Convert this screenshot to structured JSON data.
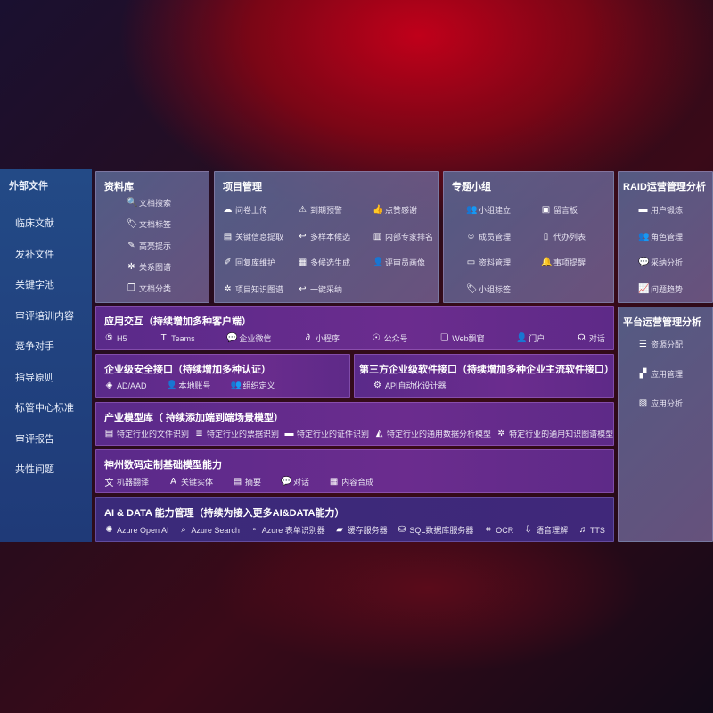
{
  "sidebar": {
    "title": "外部文件",
    "items": [
      "临床文献",
      "发补文件",
      "关键字池",
      "审评培训内容",
      "竞争对手",
      "指导原则",
      "标管中心标准",
      "审评报告",
      "共性问题"
    ]
  },
  "library": {
    "title": "资料库",
    "items": [
      {
        "icon": "document-search-icon",
        "label": "文档搜索"
      },
      {
        "icon": "tag-icon",
        "label": "文档标签"
      },
      {
        "icon": "pen-icon",
        "label": "高亮提示"
      },
      {
        "icon": "graph-icon",
        "label": "关系图谱"
      },
      {
        "icon": "document-classify-icon",
        "label": "文档分类"
      }
    ]
  },
  "project": {
    "title": "项目管理",
    "items": [
      {
        "icon": "cloud-upload-icon",
        "label": "问卷上传"
      },
      {
        "icon": "alarm-icon",
        "label": "到期预警"
      },
      {
        "icon": "thumbs-up-icon",
        "label": "点赞感谢"
      },
      {
        "icon": "extract-icon",
        "label": "关键信息提取"
      },
      {
        "icon": "reply-icon",
        "label": "多样本候选"
      },
      {
        "icon": "ranking-icon",
        "label": "内部专家排名"
      },
      {
        "icon": "edit-icon",
        "label": "回复库维护"
      },
      {
        "icon": "puzzle-icon",
        "label": "多候选生成"
      },
      {
        "icon": "user-icon",
        "label": "评审员画像"
      },
      {
        "icon": "graph-icon",
        "label": "项目知识图谱"
      },
      {
        "icon": "reply-icon",
        "label": "一键采纳"
      }
    ]
  },
  "group": {
    "title": "专题小组",
    "items": [
      {
        "icon": "group-icon",
        "label": "小组建立"
      },
      {
        "icon": "bbs-icon",
        "label": "留言板"
      },
      {
        "icon": "add-user-icon",
        "label": "成员管理"
      },
      {
        "icon": "clipboard-icon",
        "label": "代办列表"
      },
      {
        "icon": "folder-icon",
        "label": "资料管理"
      },
      {
        "icon": "bell-icon",
        "label": "事项提醒"
      },
      {
        "icon": "tag-icon",
        "label": "小组标签"
      }
    ]
  },
  "raid": {
    "title": "RAID运营管理分析",
    "items": [
      {
        "icon": "id-card-icon",
        "label": "用户锻炼"
      },
      {
        "icon": "users-icon",
        "label": "角色管理"
      },
      {
        "icon": "qa-icon",
        "label": "采纳分析"
      },
      {
        "icon": "trend-icon",
        "label": "问题趋势"
      }
    ]
  },
  "platform": {
    "title": "平台运营管理分析",
    "items": [
      {
        "icon": "list-icon",
        "label": "资源分配"
      },
      {
        "icon": "apps-icon",
        "label": "应用管理"
      },
      {
        "icon": "chart-icon",
        "label": "应用分析"
      }
    ]
  },
  "interaction": {
    "title": "应用交互（持续增加多种客户端）",
    "items": [
      {
        "icon": "html5-icon",
        "label": "H5"
      },
      {
        "icon": "teams-icon",
        "label": "Teams"
      },
      {
        "icon": "wechat-icon",
        "label": "企业微信"
      },
      {
        "icon": "mini-program-icon",
        "label": "小程序"
      },
      {
        "icon": "public-account-icon",
        "label": "公众号"
      },
      {
        "icon": "window-icon",
        "label": "Web飘窗"
      },
      {
        "icon": "portal-icon",
        "label": "门户"
      },
      {
        "icon": "chat-icon",
        "label": "对话"
      }
    ]
  },
  "security": {
    "title": "企业级安全接口（持续增加多种认证）",
    "items": [
      {
        "icon": "ad-icon",
        "label": "AD/AAD"
      },
      {
        "icon": "local-account-icon",
        "label": "本地账号"
      },
      {
        "icon": "org-icon",
        "label": "组织定义"
      }
    ]
  },
  "thirdparty": {
    "title": "第三方企业级软件接口（持续增加多种企业主流软件接口）",
    "items": [
      {
        "icon": "api-gear-icon",
        "label": "API自动化设计器"
      }
    ]
  },
  "industry": {
    "title": "产业模型库（ 持续添加端到端场景模型）",
    "items": [
      {
        "icon": "file-icon",
        "label": "特定行业的文件识别"
      },
      {
        "icon": "receipt-icon",
        "label": "特定行业的票据识别"
      },
      {
        "icon": "id-card-icon",
        "label": "特定行业的证件识别"
      },
      {
        "icon": "data-analysis-icon",
        "label": "特定行业的通用数据分析模型"
      },
      {
        "icon": "graph-icon",
        "label": "特定行业的通用知识图谱模型"
      }
    ]
  },
  "base": {
    "title": "神州数码定制基础模型能力",
    "items": [
      {
        "icon": "translate-icon",
        "label": "机器翻译"
      },
      {
        "icon": "entity-icon",
        "label": "关键实体"
      },
      {
        "icon": "summary-icon",
        "label": "摘要"
      },
      {
        "icon": "chat-bubble-icon",
        "label": "对话"
      },
      {
        "icon": "puzzle-icon",
        "label": "内容合成"
      }
    ]
  },
  "aidata": {
    "title": "AI & DATA 能力管理（持续为接入更多AI&DATA能力）",
    "items": [
      {
        "icon": "openai-icon",
        "label": "Azure Open AI"
      },
      {
        "icon": "search-icon",
        "label": "Azure Search"
      },
      {
        "icon": "form-recognizer-icon",
        "label": "Azure 表单识别器"
      },
      {
        "icon": "cache-icon",
        "label": "缓存服务器"
      },
      {
        "icon": "database-icon",
        "label": "SQL数据库服务器"
      },
      {
        "icon": "ocr-icon",
        "label": "OCR"
      },
      {
        "icon": "speech-icon",
        "label": "语音理解"
      },
      {
        "icon": "tts-icon",
        "label": "TTS"
      }
    ]
  }
}
